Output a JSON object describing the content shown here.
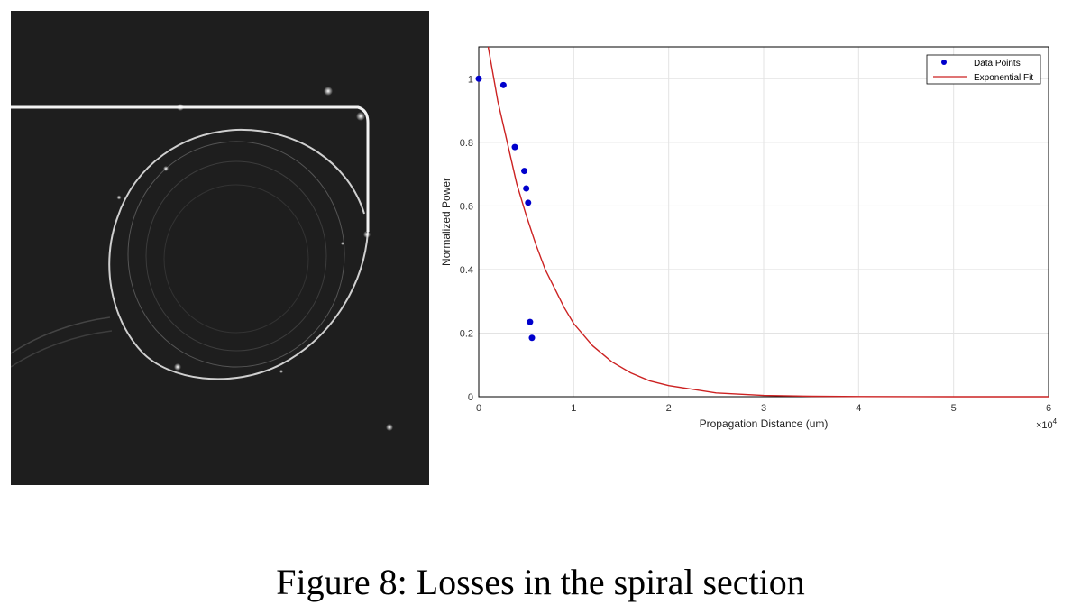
{
  "figure": {
    "caption": "Figure 8: Losses in the spiral section"
  },
  "image_left": {
    "icon": "waveguide-spiral-micrograph"
  },
  "chart_data": {
    "type": "scatter",
    "xlabel": "Propagation Distance (um)",
    "ylabel": "Normalized Power",
    "x_multiplier_label": "×10",
    "x_multiplier_exponent": "4",
    "xlim": [
      0,
      6
    ],
    "ylim": [
      0,
      1.1
    ],
    "x_ticks": [
      0,
      1,
      2,
      3,
      4,
      5,
      6
    ],
    "y_ticks": [
      0,
      0.2,
      0.4,
      0.6,
      0.8,
      1
    ],
    "x_tick_labels": [
      "0",
      "1",
      "2",
      "3",
      "4",
      "5",
      "6"
    ],
    "y_tick_labels": [
      "0",
      "0.2",
      "0.4",
      "0.6",
      "0.8",
      "1"
    ],
    "grid": true,
    "legend_position": "top-right",
    "series": [
      {
        "name": "Data Points",
        "kind": "scatter",
        "color": "#0000cc",
        "points": [
          {
            "x": 0.0,
            "y": 1.0
          },
          {
            "x": 0.26,
            "y": 0.98
          },
          {
            "x": 0.38,
            "y": 0.785
          },
          {
            "x": 0.48,
            "y": 0.71
          },
          {
            "x": 0.5,
            "y": 0.655
          },
          {
            "x": 0.52,
            "y": 0.61
          },
          {
            "x": 0.54,
            "y": 0.235
          },
          {
            "x": 0.56,
            "y": 0.185
          }
        ]
      },
      {
        "name": "Exponential Fit",
        "kind": "line",
        "color": "#cc2222",
        "points": [
          {
            "x": 0.1,
            "y": 1.1
          },
          {
            "x": 0.2,
            "y": 0.93
          },
          {
            "x": 0.3,
            "y": 0.8
          },
          {
            "x": 0.4,
            "y": 0.67
          },
          {
            "x": 0.5,
            "y": 0.57
          },
          {
            "x": 0.6,
            "y": 0.48
          },
          {
            "x": 0.7,
            "y": 0.4
          },
          {
            "x": 0.8,
            "y": 0.34
          },
          {
            "x": 0.9,
            "y": 0.28
          },
          {
            "x": 1.0,
            "y": 0.23
          },
          {
            "x": 1.2,
            "y": 0.16
          },
          {
            "x": 1.4,
            "y": 0.11
          },
          {
            "x": 1.6,
            "y": 0.075
          },
          {
            "x": 1.8,
            "y": 0.05
          },
          {
            "x": 2.0,
            "y": 0.035
          },
          {
            "x": 2.5,
            "y": 0.012
          },
          {
            "x": 3.0,
            "y": 0.004
          },
          {
            "x": 3.5,
            "y": 0.0015
          },
          {
            "x": 4.0,
            "y": 0.0005
          },
          {
            "x": 5.0,
            "y": 0.0001
          },
          {
            "x": 6.0,
            "y": 0.0
          }
        ]
      }
    ]
  }
}
